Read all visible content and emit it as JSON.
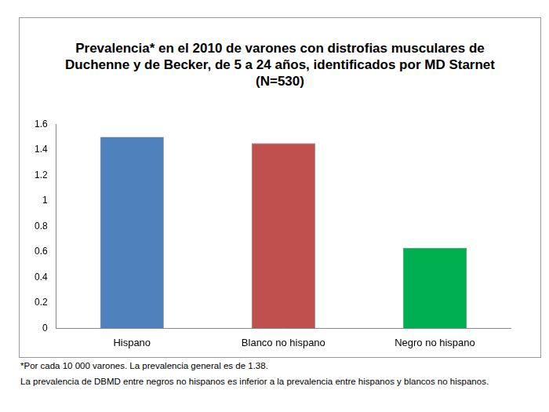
{
  "chart_data": {
    "type": "bar",
    "title": "Prevalencia* en el 2010 de varones con distrofias musculares de Duchenne y de Becker, de 5 a 24 años, identificados por MD Starnet (N=530)",
    "categories": [
      "Hispano",
      "Blanco no hispano",
      "Negro no hispano"
    ],
    "values": [
      1.5,
      1.45,
      0.63
    ],
    "colors": [
      "#4f81bd",
      "#c0504d",
      "#00b050"
    ],
    "ylim": [
      0,
      1.6
    ],
    "yticks": [
      0,
      0.2,
      0.4,
      0.6,
      0.8,
      1,
      1.2,
      1.4,
      1.6
    ],
    "grid": false,
    "annotations": [
      "*Por cada 10 000 varones. La prevalencia general es de 1.38.",
      "La prevalencia de DBMD entre negros no hispanos es inferior a la prevalencia entre hispanos y blancos no hispanos."
    ]
  }
}
